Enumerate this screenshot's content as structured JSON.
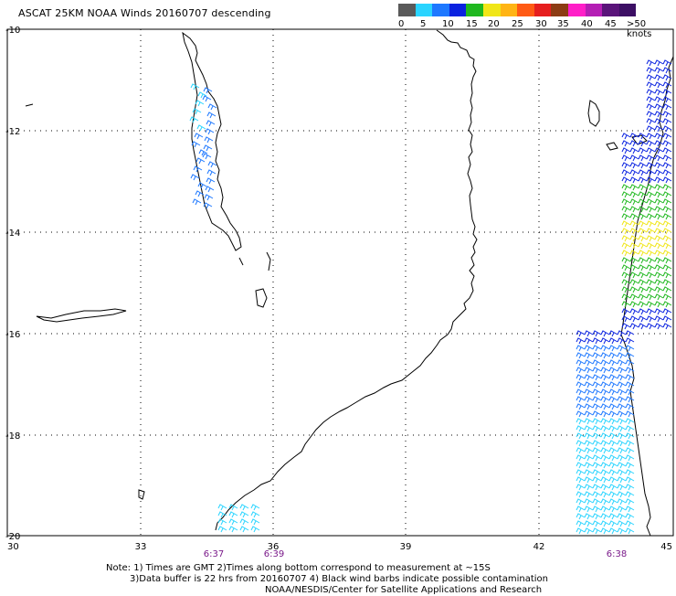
{
  "header": {
    "title": "ASCAT 25KM NOAA Winds 20160707 descending"
  },
  "legend": {
    "swatch_colors": [
      "#5a5a5a",
      "#2ad4ff",
      "#1e78ff",
      "#0a22e0",
      "#1fb81f",
      "#f0e618",
      "#ffb414",
      "#ff5a14",
      "#e61e1e",
      "#8c3c14",
      "#ff1ec8",
      "#b41eb4",
      "#5a147a",
      "#3c0f64"
    ],
    "labels": [
      "0",
      "5",
      "10",
      "15",
      "20",
      "25",
      "30",
      "35",
      "40",
      "45",
      ">50 knots"
    ]
  },
  "axes": {
    "lat_labels": [
      "-10",
      "-12",
      "-14",
      "-16",
      "-18",
      "-20"
    ],
    "lon_labels": [
      "30",
      "33",
      "36",
      "39",
      "42",
      "45"
    ]
  },
  "time_labels": [
    "6:37",
    "6:39",
    "6:38"
  ],
  "notes": {
    "line1": "Note: 1) Times are GMT 2)Times along bottom correspond to measurement at ~15S",
    "line2": "3)Data buffer is 22 hrs from 20160707 4) Black wind barbs indicate possible contamination",
    "line3": "NOAA/NESDIS/Center for Satellite Applications and Research"
  }
}
